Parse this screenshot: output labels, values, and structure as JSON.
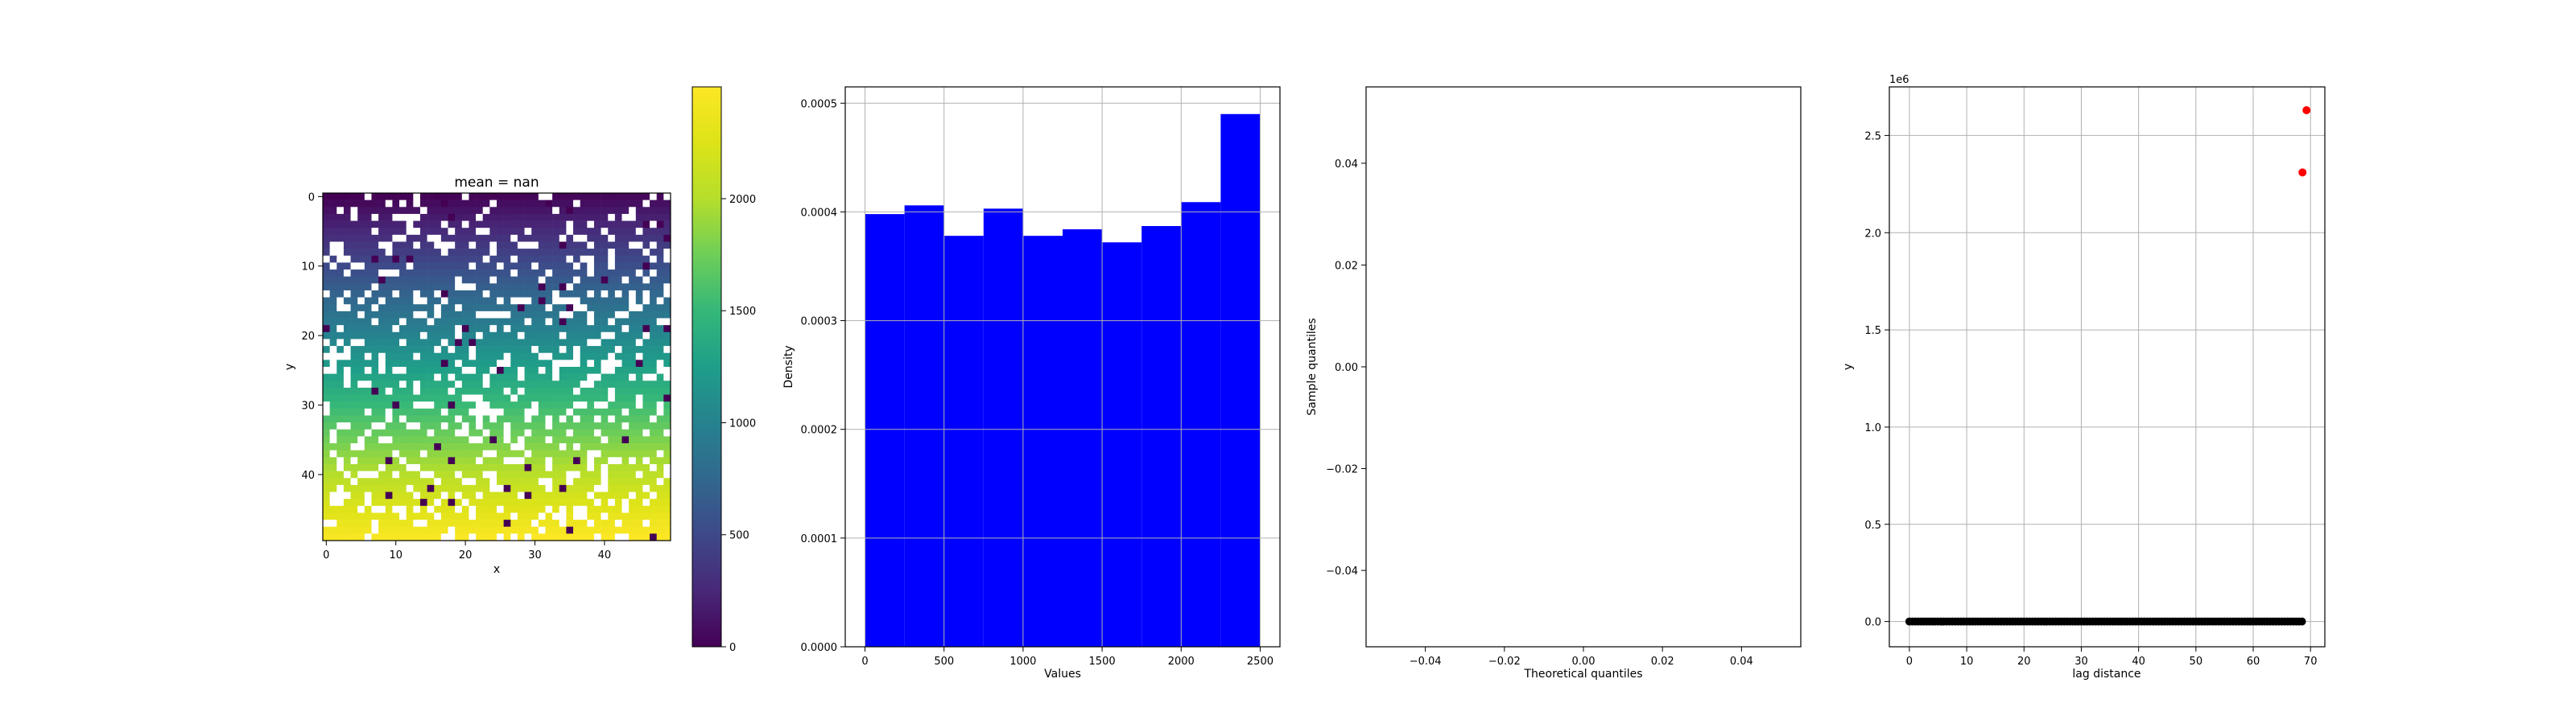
{
  "chart_data": [
    {
      "type": "heatmap",
      "title": "mean = nan",
      "xlabel": "x",
      "ylabel": "y",
      "grid_size": [
        50,
        50
      ],
      "xlim": [
        -0.5,
        49.5
      ],
      "ylim": [
        49.5,
        -0.5
      ],
      "xticks": [
        0,
        10,
        20,
        30,
        40
      ],
      "yticks": [
        0,
        10,
        20,
        30,
        40
      ],
      "value_formula": "value ≈ 50*y + x (0 at top-left to 2499 at bottom-right), some cells missing (NaN) or set to 0",
      "colormap": "viridis",
      "colorbar": {
        "range": [
          0,
          2499
        ],
        "ticks": [
          0,
          500,
          1000,
          1500,
          2000
        ]
      }
    },
    {
      "type": "bar",
      "subtype": "histogram",
      "xlabel": "Values",
      "ylabel": "Density",
      "bin_edges": [
        0,
        250,
        500,
        750,
        1000,
        1250,
        1500,
        1750,
        2000,
        2250,
        2500
      ],
      "values": [
        0.000398,
        0.000406,
        0.000378,
        0.000403,
        0.000378,
        0.000384,
        0.000372,
        0.000387,
        0.000409,
        0.00049
      ],
      "xlim": [
        -125,
        2625
      ],
      "ylim": [
        0,
        0.000515
      ],
      "xticks": [
        0,
        500,
        1000,
        1500,
        2000,
        2500
      ],
      "yticks": [
        "0.0000",
        "0.0001",
        "0.0002",
        "0.0003",
        "0.0004",
        "0.0005"
      ],
      "color": "#0000ff",
      "grid": true
    },
    {
      "type": "scatter",
      "xlabel": "Theoretical quantiles",
      "ylabel": "Sample quantiles",
      "points": [],
      "xlim": [
        -0.055,
        0.055
      ],
      "ylim": [
        -0.055,
        0.055
      ],
      "xticks": [
        "−0.04",
        "−0.02",
        "0.00",
        "0.02",
        "0.04"
      ],
      "yticks": [
        "−0.04",
        "−0.02",
        "0.00",
        "0.02",
        "0.04"
      ],
      "grid": false
    },
    {
      "type": "scatter",
      "xlabel": "lag distance",
      "ylabel": "y",
      "offset_text": "1e6",
      "series": [
        {
          "color": "#000000",
          "x_range": [
            0,
            68.5
          ],
          "y": 0
        },
        {
          "color": "#ff0000",
          "points": [
            [
              69.3,
              2.63
            ],
            [
              68.6,
              2.31
            ]
          ]
        }
      ],
      "xlim": [
        -3.5,
        72.5
      ],
      "ylim": [
        -0.13,
        2.75
      ],
      "xticks": [
        0,
        10,
        20,
        30,
        40,
        50,
        60,
        70
      ],
      "yticks": [
        "0.0",
        "0.5",
        "1.0",
        "1.5",
        "2.0",
        "2.5"
      ],
      "grid": true
    }
  ]
}
